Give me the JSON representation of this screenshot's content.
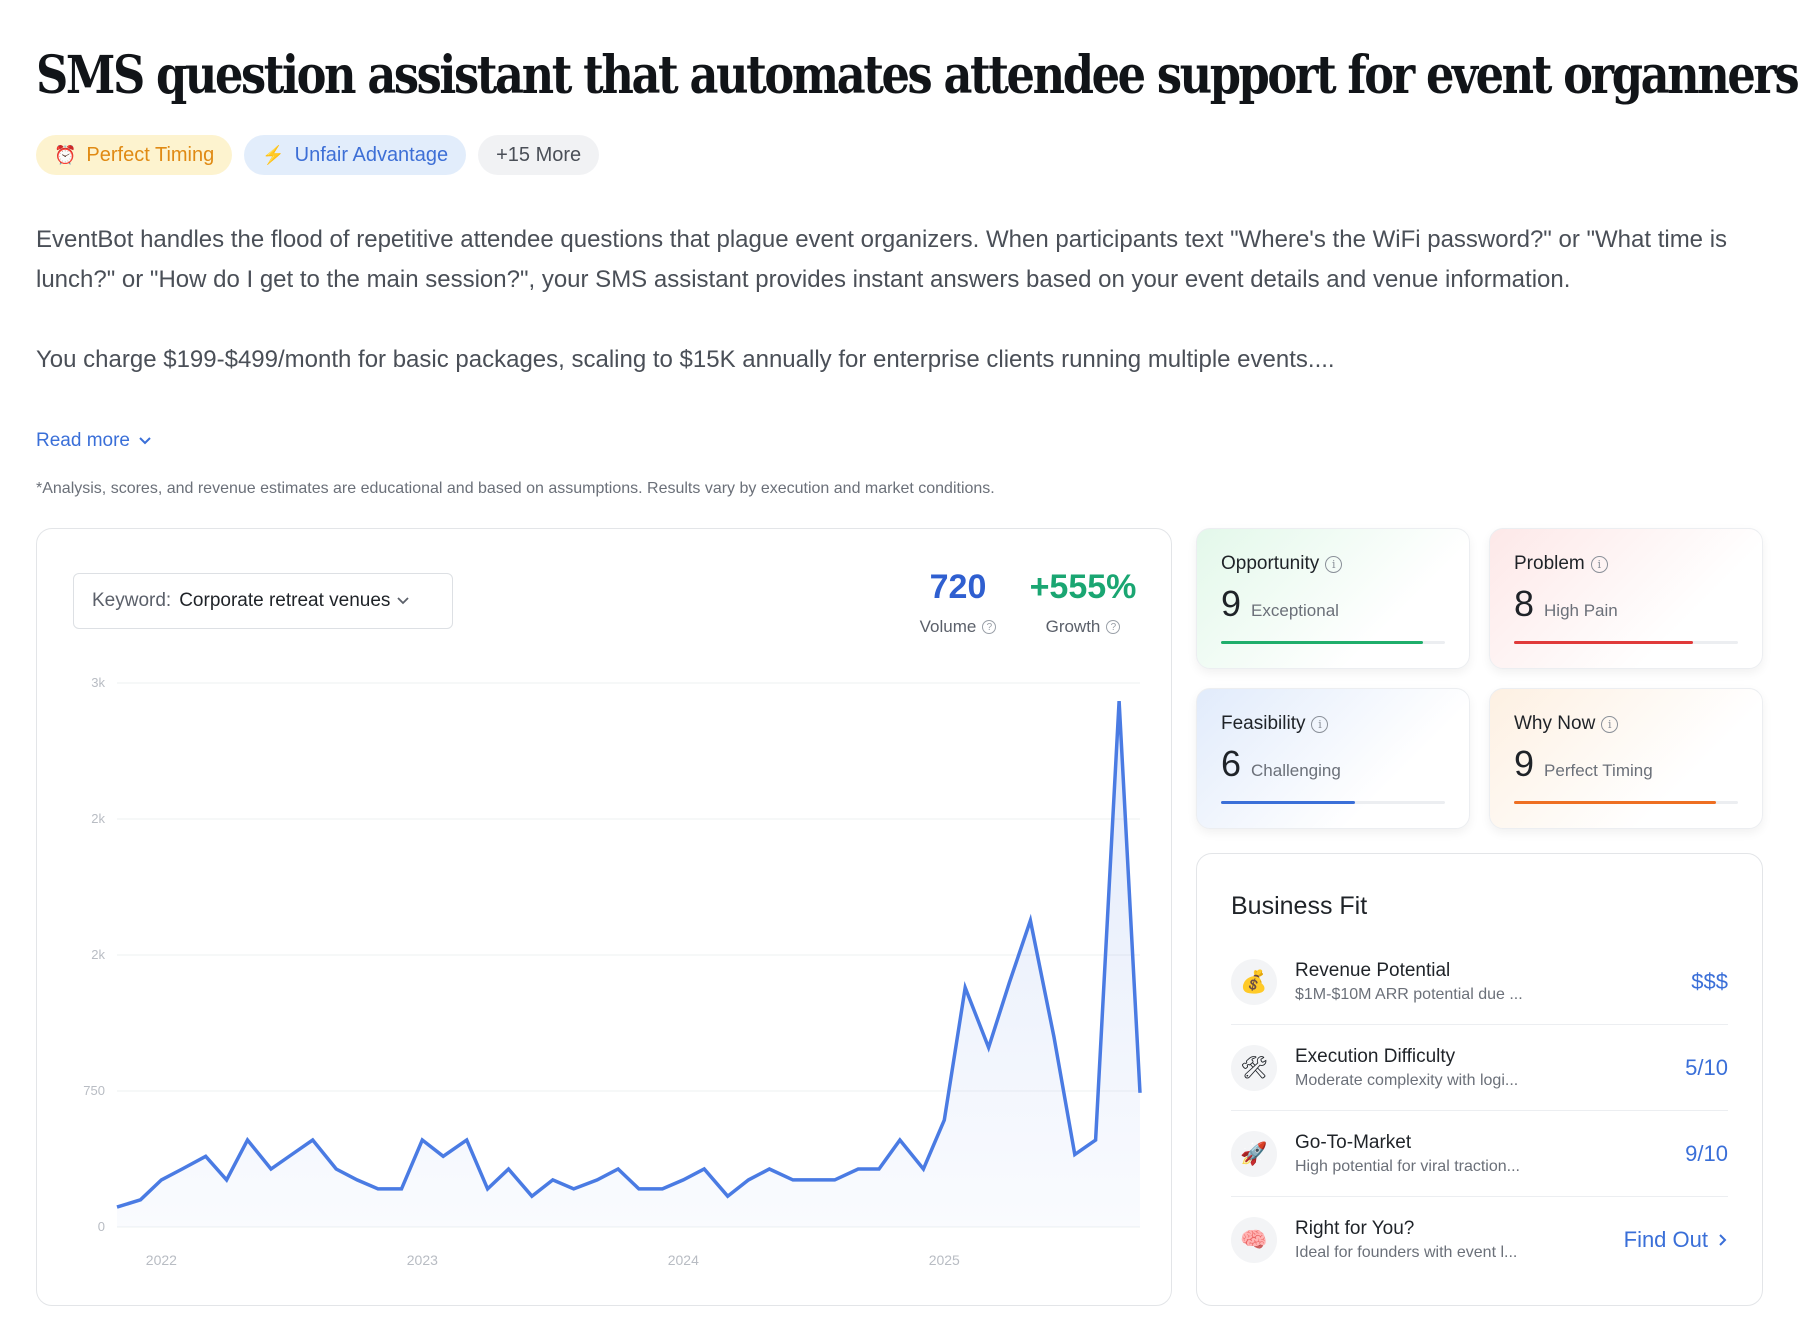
{
  "title": "SMS question assistant that automates attendee support for event organners",
  "tags": [
    {
      "label": "Perfect Timing",
      "icon": "alarm-clock-icon"
    },
    {
      "label": "Unfair Advantage",
      "icon": "lightning-icon"
    },
    {
      "label": "+15 More"
    }
  ],
  "description": {
    "p1": "EventBot handles the flood of repetitive attendee questions that plague event organizers. When participants text \"Where's the WiFi password?\" or \"What time is lunch?\" or \"How do I get to the main session?\", your SMS assistant provides instant answers based on your event details and venue information.",
    "p2": "You charge $199-$499/month for basic packages, scaling to $15K annually for enterprise clients running multiple events...."
  },
  "read_more": "Read more",
  "disclaimer": "*Analysis, scores, and revenue estimates are educational and based on assumptions. Results vary by execution and market conditions.",
  "keyword": {
    "label": "Keyword:",
    "value": "Corporate retreat venues"
  },
  "metrics": {
    "volume": {
      "value": "720",
      "label": "Volume"
    },
    "growth": {
      "value": "+555%",
      "label": "Growth"
    }
  },
  "chart_data": {
    "type": "area",
    "ytick_labels": [
      "0",
      "750",
      "2k",
      "2k",
      "3k"
    ],
    "ytick_values": [
      0,
      750,
      1500,
      2250,
      3000
    ],
    "xtick_labels": [
      "2022",
      "2023",
      "2024",
      "2025"
    ],
    "xtick_values": [
      2022,
      2023,
      2024,
      2025
    ],
    "ylim": [
      0,
      3000
    ],
    "xlim": [
      2021.83,
      2025.75
    ],
    "line_color": "#4a7be3",
    "grid": true,
    "x": [
      2021.83,
      2021.92,
      2022.0,
      2022.08,
      2022.17,
      2022.25,
      2022.33,
      2022.42,
      2022.5,
      2022.58,
      2022.67,
      2022.75,
      2022.83,
      2022.92,
      2023.0,
      2023.08,
      2023.17,
      2023.25,
      2023.33,
      2023.42,
      2023.5,
      2023.58,
      2023.67,
      2023.75,
      2023.83,
      2023.92,
      2024.0,
      2024.08,
      2024.17,
      2024.25,
      2024.33,
      2024.42,
      2024.5,
      2024.58,
      2024.67,
      2024.75,
      2024.83,
      2024.92,
      2025.0,
      2025.08,
      2025.17,
      2025.25,
      2025.33,
      2025.42,
      2025.5,
      2025.58,
      2025.67,
      2025.75
    ],
    "y": [
      110,
      150,
      260,
      320,
      390,
      260,
      480,
      320,
      400,
      480,
      320,
      260,
      210,
      210,
      480,
      390,
      480,
      210,
      320,
      170,
      260,
      210,
      260,
      320,
      210,
      210,
      260,
      320,
      170,
      260,
      320,
      260,
      260,
      260,
      320,
      320,
      480,
      320,
      590,
      1320,
      990,
      1350,
      1690,
      1050,
      400,
      480,
      2900,
      740
    ]
  },
  "scores": [
    {
      "name": "Opportunity",
      "value": "9",
      "desc": "Exceptional",
      "fill": 0.9,
      "color": "#1fae6b"
    },
    {
      "name": "Problem",
      "value": "8",
      "desc": "High Pain",
      "fill": 0.8,
      "color": "#e03a3a"
    },
    {
      "name": "Feasibility",
      "value": "6",
      "desc": "Challenging",
      "fill": 0.6,
      "color": "#3a6fd8"
    },
    {
      "name": "Why Now",
      "value": "9",
      "desc": "Perfect Timing",
      "fill": 0.9,
      "color": "#ee6f22"
    }
  ],
  "business_fit": {
    "title": "Business Fit",
    "rows": [
      {
        "name": "Revenue Potential",
        "sub": "$1M-$10M ARR potential due ...",
        "value": "$$$",
        "icon": "money-bag-icon"
      },
      {
        "name": "Execution Difficulty",
        "sub": "Moderate complexity with logi...",
        "value": "5/10",
        "icon": "tools-icon"
      },
      {
        "name": "Go-To-Market",
        "sub": "High potential for viral traction...",
        "value": "9/10",
        "icon": "rocket-icon"
      },
      {
        "name": "Right for You?",
        "sub": "Ideal for founders with event l...",
        "value": "Find Out",
        "icon": "brain-icon"
      }
    ]
  }
}
